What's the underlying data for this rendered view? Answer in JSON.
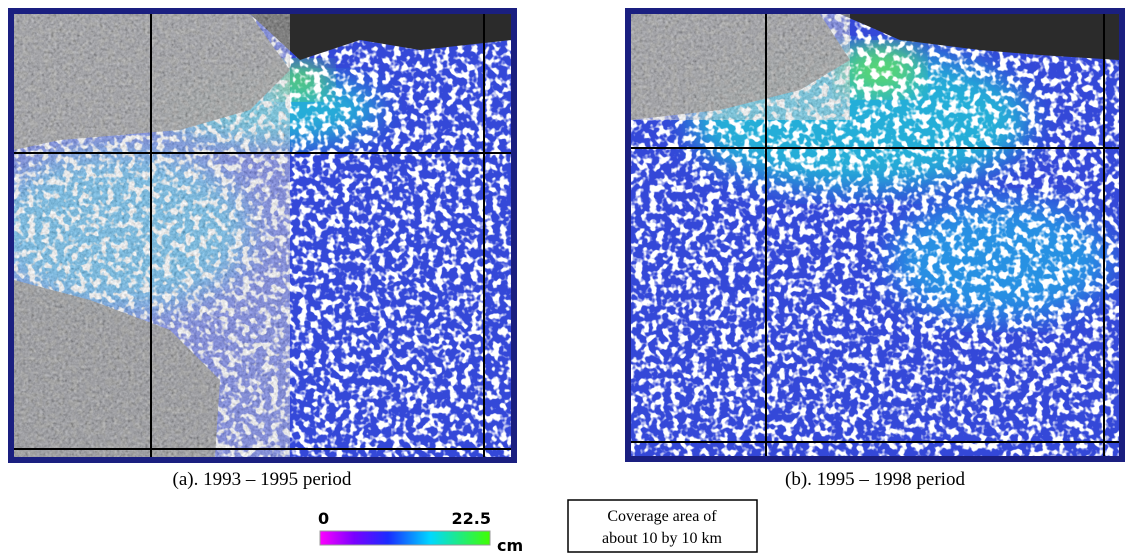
{
  "panels": [
    {
      "caption": "(a). 1993 – 1995 period"
    },
    {
      "caption": "(b). 1995 – 1998 period"
    }
  ],
  "colorbar": {
    "min": 0,
    "max": 22.5,
    "unit": "cm"
  },
  "note": {
    "lines": [
      "Coverage area of",
      "about 10 by 10 km"
    ]
  }
}
